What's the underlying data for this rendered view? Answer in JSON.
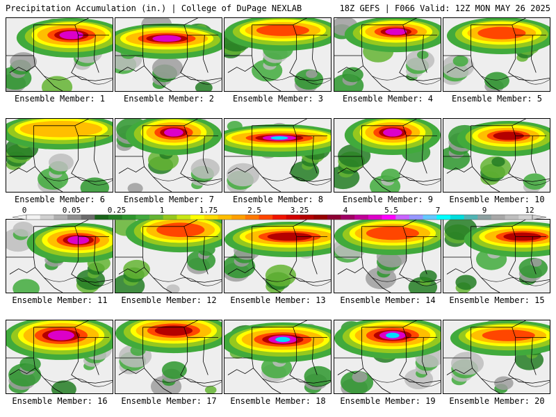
{
  "header": {
    "title": "Precipitation Accumulation (in.) | College of DuPage NEXLAB",
    "run_info": "18Z GEFS | F066 Valid: 12Z MON MAY 26 2025"
  },
  "legend": {
    "labels": [
      "0",
      "0.05",
      "0.25",
      "1",
      "1.75",
      "2.5",
      "3.25",
      "4",
      "5.5",
      "7",
      "9",
      "12"
    ],
    "colors": [
      "#f2f2f2",
      "#d0d0d0",
      "#b0b0b0",
      "#8e8e8e",
      "#6b6b6b",
      "#196419",
      "#237d23",
      "#2d962d",
      "#41aa3c",
      "#64b432",
      "#96c81e",
      "#c8e614",
      "#ffff00",
      "#ffdc00",
      "#ffbe00",
      "#ffa000",
      "#ff7800",
      "#ff4600",
      "#f01400",
      "#d20000",
      "#b40000",
      "#960000",
      "#8c0032",
      "#a00064",
      "#be0096",
      "#dc00c8",
      "#ff00ff",
      "#c864ff",
      "#9696ff",
      "#64c8ff",
      "#00ffff",
      "#00dcdc",
      "#50b4b4",
      "#8ca0a0",
      "#a8a8a8",
      "#bebebe",
      "#d2d2d2"
    ]
  },
  "panels": [
    {
      "label": "Ensemble Member: 1"
    },
    {
      "label": "Ensemble Member: 2"
    },
    {
      "label": "Ensemble Member: 3"
    },
    {
      "label": "Ensemble Member: 4"
    },
    {
      "label": "Ensemble Member: 5"
    },
    {
      "label": "Ensemble Member: 6"
    },
    {
      "label": "Ensemble Member: 7"
    },
    {
      "label": "Ensemble Member: 8"
    },
    {
      "label": "Ensemble Member: 9"
    },
    {
      "label": "Ensemble Member: 10"
    },
    {
      "label": "Ensemble Member: 11"
    },
    {
      "label": "Ensemble Member: 12"
    },
    {
      "label": "Ensemble Member: 13"
    },
    {
      "label": "Ensemble Member: 14"
    },
    {
      "label": "Ensemble Member: 15"
    },
    {
      "label": "Ensemble Member: 16"
    },
    {
      "label": "Ensemble Member: 17"
    },
    {
      "label": "Ensemble Member: 18"
    },
    {
      "label": "Ensemble Member: 19"
    },
    {
      "label": "Ensemble Member: 20"
    }
  ]
}
